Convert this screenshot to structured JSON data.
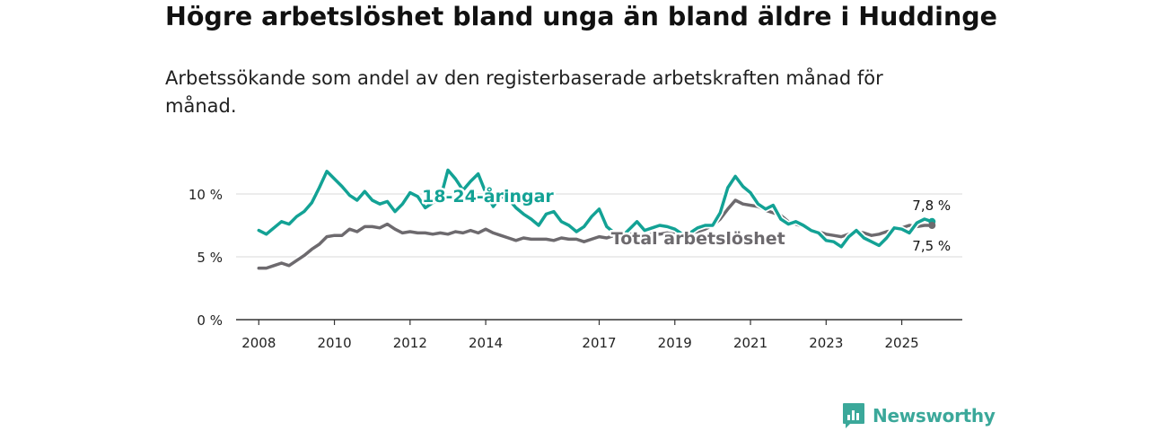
{
  "header": {
    "title": "Högre arbetslöshet bland unga än bland äldre i Huddinge",
    "subtitle": "Arbetssökande som andel av den registerbaserade arbetskraften månad för månad."
  },
  "brand": {
    "name": "Newsworthy",
    "color": "#3ba89a"
  },
  "chart_data": {
    "type": "line",
    "title": "Högre arbetslöshet bland unga än bland äldre i Huddinge",
    "subtitle": "Arbetssökande som andel av den registerbaserade arbetskraften månad för månad.",
    "xlabel": "",
    "ylabel": "",
    "xlim": [
      2007.4,
      2026.6
    ],
    "ylim": [
      0,
      10
    ],
    "y_ticks": [
      0,
      5,
      10
    ],
    "y_tick_labels": [
      "0 %",
      "5 %",
      "10 %"
    ],
    "x_ticks": [
      2008,
      2010,
      2012,
      2014,
      2017,
      2019,
      2021,
      2023,
      2025
    ],
    "x_tick_labels": [
      "2008",
      "2010",
      "2012",
      "2014",
      "2017",
      "2019",
      "2021",
      "2023",
      "2025"
    ],
    "grid": true,
    "series": [
      {
        "name": "Total arbetslöshet",
        "label": "Total arbetslöshet",
        "color": "#6d6a6e",
        "end_label": "7,5 %",
        "x": [
          2008.0,
          2008.2,
          2008.4,
          2008.6,
          2008.8,
          2009.0,
          2009.2,
          2009.4,
          2009.6,
          2009.8,
          2010.0,
          2010.2,
          2010.4,
          2010.6,
          2010.8,
          2011.0,
          2011.2,
          2011.4,
          2011.6,
          2011.8,
          2012.0,
          2012.2,
          2012.4,
          2012.6,
          2012.8,
          2013.0,
          2013.2,
          2013.4,
          2013.6,
          2013.8,
          2014.0,
          2014.2,
          2014.4,
          2014.6,
          2014.8,
          2015.0,
          2015.2,
          2015.4,
          2015.6,
          2015.8,
          2016.0,
          2016.2,
          2016.4,
          2016.6,
          2016.8,
          2017.0,
          2017.2,
          2017.4,
          2017.6,
          2017.8,
          2018.0,
          2018.2,
          2018.4,
          2018.6,
          2018.8,
          2019.0,
          2019.2,
          2019.4,
          2019.6,
          2019.8,
          2020.0,
          2020.2,
          2020.4,
          2020.6,
          2020.8,
          2021.0,
          2021.2,
          2021.4,
          2021.6,
          2021.8,
          2022.0,
          2022.2,
          2022.4,
          2022.6,
          2022.8,
          2023.0,
          2023.2,
          2023.4,
          2023.6,
          2023.8,
          2024.0,
          2024.2,
          2024.4,
          2024.6,
          2024.8,
          2025.0,
          2025.2,
          2025.4,
          2025.6,
          2025.8
        ],
        "values": [
          4.1,
          4.1,
          4.3,
          4.5,
          4.3,
          4.7,
          5.1,
          5.6,
          6.0,
          6.6,
          6.7,
          6.7,
          7.2,
          7.0,
          7.4,
          7.4,
          7.3,
          7.6,
          7.2,
          6.9,
          7.0,
          6.9,
          6.9,
          6.8,
          6.9,
          6.8,
          7.0,
          6.9,
          7.1,
          6.9,
          7.2,
          6.9,
          6.7,
          6.5,
          6.3,
          6.5,
          6.4,
          6.4,
          6.4,
          6.3,
          6.5,
          6.4,
          6.4,
          6.2,
          6.4,
          6.6,
          6.5,
          6.7,
          6.6,
          6.8,
          6.8,
          6.7,
          6.8,
          6.8,
          6.9,
          6.8,
          6.8,
          6.9,
          7.0,
          7.2,
          7.5,
          8.0,
          8.8,
          9.5,
          9.2,
          9.1,
          9.0,
          8.7,
          8.5,
          8.3,
          7.8,
          7.6,
          7.4,
          7.2,
          7.0,
          6.8,
          6.7,
          6.6,
          6.8,
          7.0,
          6.9,
          6.7,
          6.8,
          7.0,
          7.1,
          7.3,
          7.5,
          7.4,
          7.5,
          7.5
        ]
      },
      {
        "name": "18-24-åringar",
        "label": "18-24-åringar",
        "color": "#13a295",
        "end_label": "7,8 %",
        "x": [
          2008.0,
          2008.2,
          2008.4,
          2008.6,
          2008.8,
          2009.0,
          2009.2,
          2009.4,
          2009.6,
          2009.8,
          2010.0,
          2010.2,
          2010.4,
          2010.6,
          2010.8,
          2011.0,
          2011.2,
          2011.4,
          2011.6,
          2011.8,
          2012.0,
          2012.2,
          2012.4,
          2012.6,
          2012.8,
          2013.0,
          2013.2,
          2013.4,
          2013.6,
          2013.8,
          2014.0,
          2014.2,
          2014.4,
          2014.6,
          2014.8,
          2015.0,
          2015.2,
          2015.4,
          2015.6,
          2015.8,
          2016.0,
          2016.2,
          2016.4,
          2016.6,
          2016.8,
          2017.0,
          2017.2,
          2017.4,
          2017.6,
          2017.8,
          2018.0,
          2018.2,
          2018.4,
          2018.6,
          2018.8,
          2019.0,
          2019.2,
          2019.4,
          2019.6,
          2019.8,
          2020.0,
          2020.2,
          2020.4,
          2020.6,
          2020.8,
          2021.0,
          2021.2,
          2021.4,
          2021.6,
          2021.8,
          2022.0,
          2022.2,
          2022.4,
          2022.6,
          2022.8,
          2023.0,
          2023.2,
          2023.4,
          2023.6,
          2023.8,
          2024.0,
          2024.2,
          2024.4,
          2024.6,
          2024.8,
          2025.0,
          2025.2,
          2025.4,
          2025.6,
          2025.8
        ],
        "values": [
          7.1,
          6.8,
          7.3,
          7.8,
          7.6,
          8.2,
          8.6,
          9.3,
          10.5,
          11.8,
          11.2,
          10.6,
          9.9,
          9.5,
          10.2,
          9.5,
          9.2,
          9.4,
          8.6,
          9.2,
          10.1,
          9.8,
          8.9,
          9.3,
          9.6,
          11.9,
          11.2,
          10.3,
          11.0,
          11.6,
          10.1,
          9.0,
          9.8,
          9.6,
          8.9,
          8.4,
          8.0,
          7.5,
          8.4,
          8.6,
          7.8,
          7.5,
          7.0,
          7.4,
          8.2,
          8.8,
          7.4,
          6.9,
          6.6,
          7.2,
          7.8,
          7.1,
          7.3,
          7.5,
          7.4,
          7.2,
          6.8,
          6.9,
          7.3,
          7.5,
          7.5,
          8.5,
          10.5,
          11.4,
          10.6,
          10.1,
          9.2,
          8.8,
          9.1,
          8.0,
          7.6,
          7.8,
          7.5,
          7.1,
          6.9,
          6.3,
          6.2,
          5.8,
          6.6,
          7.1,
          6.5,
          6.2,
          5.9,
          6.5,
          7.3,
          7.2,
          6.9,
          7.7,
          8.0,
          7.8
        ]
      }
    ]
  }
}
